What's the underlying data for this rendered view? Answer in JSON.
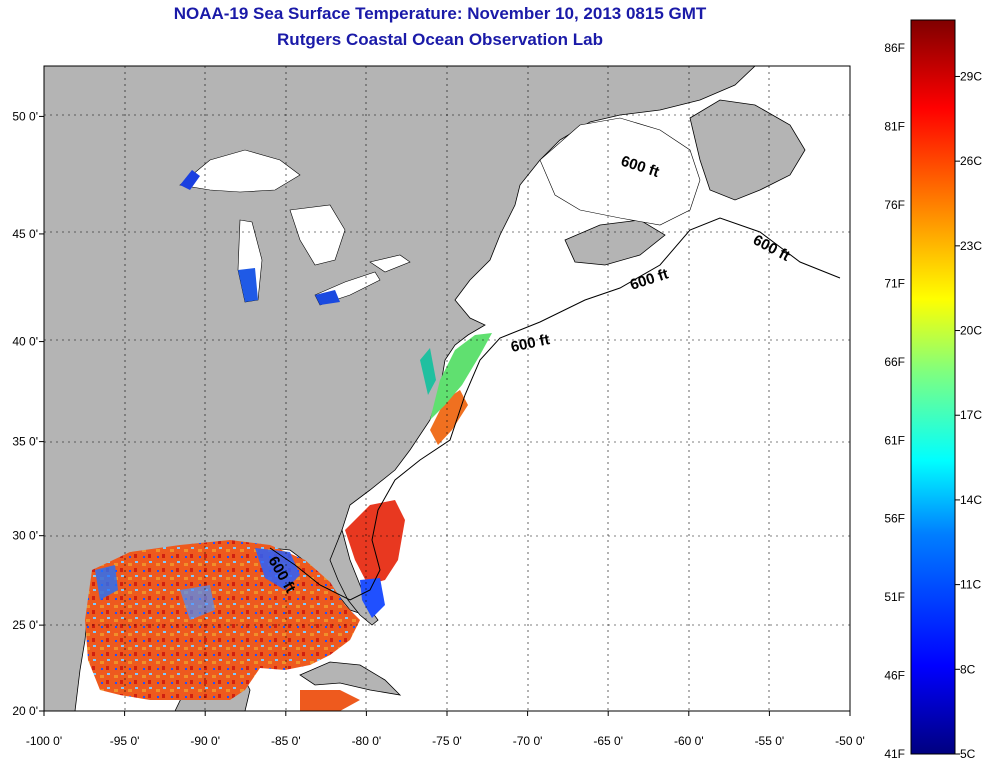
{
  "title": "NOAA-19 Sea Surface Temperature:  November 10, 2013 0815 GMT",
  "subtitle": "Rutgers Coastal Ocean Observation Lab",
  "map": {
    "lon_range": [
      -100,
      -50
    ],
    "lat_range": [
      20,
      52
    ],
    "lon_ticks": [
      {
        "value": -100,
        "label": "-100 0'"
      },
      {
        "value": -95,
        "label": "-95 0'"
      },
      {
        "value": -90,
        "label": "-90 0'"
      },
      {
        "value": -85,
        "label": "-85 0'"
      },
      {
        "value": -80,
        "label": "-80 0'"
      },
      {
        "value": -75,
        "label": "-75 0'"
      },
      {
        "value": -70,
        "label": "-70 0'"
      },
      {
        "value": -65,
        "label": "-65 0'"
      },
      {
        "value": -60,
        "label": "-60 0'"
      },
      {
        "value": -55,
        "label": "-55 0'"
      },
      {
        "value": -50,
        "label": "-50 0'"
      }
    ],
    "lat_ticks": [
      {
        "value": 20,
        "label": "20 0'"
      },
      {
        "value": 25,
        "label": "25 0'"
      },
      {
        "value": 30,
        "label": "30 0'"
      },
      {
        "value": 35,
        "label": "35 0'"
      },
      {
        "value": 40,
        "label": "40 0'"
      },
      {
        "value": 45,
        "label": "45 0'"
      },
      {
        "value": 50,
        "label": "50 0'"
      }
    ],
    "contour_labels": [
      "600 ft",
      "600 ft",
      "600 ft",
      "600 ft",
      "600 ft"
    ],
    "land_color": "#b4b4b4"
  },
  "colorbar": {
    "range_c": [
      5,
      31
    ],
    "f_labels": [
      "86F",
      "81F",
      "76F",
      "71F",
      "66F",
      "61F",
      "56F",
      "51F",
      "46F",
      "41F"
    ],
    "c_labels": [
      "29C",
      "26C",
      "23C",
      "20C",
      "17C",
      "14C",
      "11C",
      "8C",
      "5C"
    ],
    "f_values": [
      86,
      81,
      76,
      71,
      66,
      61,
      56,
      51,
      46,
      41
    ],
    "c_values": [
      29,
      26,
      23,
      20,
      17,
      14,
      11,
      8,
      5
    ],
    "colors": [
      "#00007f",
      "#0000ff",
      "#007fff",
      "#00ffff",
      "#7fff7f",
      "#ffff00",
      "#ff7f00",
      "#ff0000",
      "#7f0000"
    ]
  }
}
